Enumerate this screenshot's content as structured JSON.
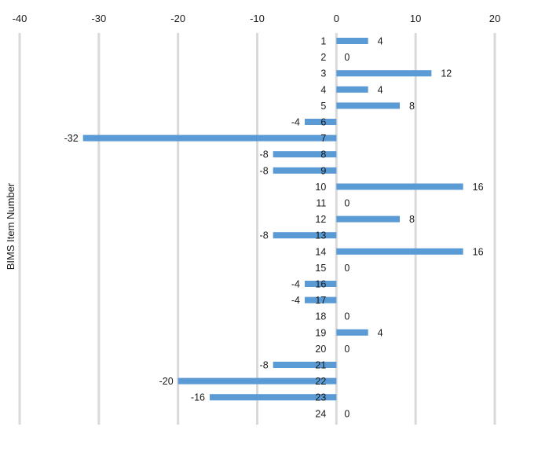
{
  "chart_data": {
    "type": "bar",
    "orientation": "horizontal",
    "title": "",
    "xlabel": "",
    "ylabel": "BIMS Item Number",
    "xlim": [
      -40,
      20
    ],
    "x_ticks": [
      -40,
      -30,
      -20,
      -10,
      0,
      10,
      20
    ],
    "x_axis_position": "top",
    "grid": "vertical",
    "legend": "none",
    "bar_color": "#5B9BD5",
    "categories": [
      "1",
      "2",
      "3",
      "4",
      "5",
      "6",
      "7",
      "8",
      "9",
      "10",
      "11",
      "12",
      "13",
      "14",
      "15",
      "16",
      "17",
      "18",
      "19",
      "20",
      "21",
      "22",
      "23",
      "24"
    ],
    "values": [
      4,
      0,
      12,
      4,
      8,
      -4,
      -32,
      -8,
      -8,
      16,
      0,
      8,
      -8,
      16,
      0,
      -4,
      -4,
      0,
      4,
      0,
      -8,
      -20,
      -16,
      0
    ]
  }
}
